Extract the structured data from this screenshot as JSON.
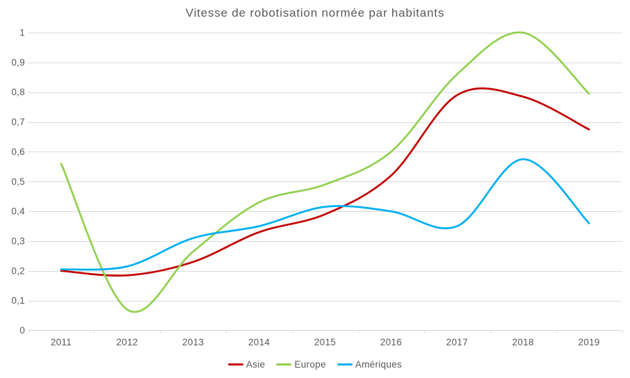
{
  "chart_data": {
    "type": "line",
    "title": "Vitesse de robotisation normée par habitants",
    "x_categories": [
      "2011",
      "2012",
      "2013",
      "2014",
      "2015",
      "2016",
      "2017",
      "2018",
      "2019"
    ],
    "y_tick_labels": [
      "0",
      "0,1",
      "0,2",
      "0,3",
      "0,4",
      "0,5",
      "0,6",
      "0,7",
      "0,8",
      "0,9",
      "1"
    ],
    "ylim": [
      0,
      1
    ],
    "grid": "horizontal",
    "line_style": "smooth",
    "legend_position": "bottom",
    "series": [
      {
        "name": "Asie",
        "color": "#C00000",
        "values": [
          0.2,
          0.185,
          0.23,
          0.33,
          0.39,
          0.52,
          0.79,
          0.785,
          0.675
        ]
      },
      {
        "name": "Europe",
        "color": "#92D050",
        "values": [
          0.56,
          0.07,
          0.265,
          0.43,
          0.49,
          0.6,
          0.86,
          1.0,
          0.795
        ]
      },
      {
        "name": "Amériques",
        "color": "#00B0F0",
        "values": [
          0.205,
          0.215,
          0.31,
          0.35,
          0.415,
          0.4,
          0.35,
          0.575,
          0.36
        ]
      }
    ]
  },
  "colors": {
    "text": "#595959",
    "gridline": "#D9D9D9",
    "axis": "#D6D6D6",
    "background": "#FFFFFF"
  }
}
